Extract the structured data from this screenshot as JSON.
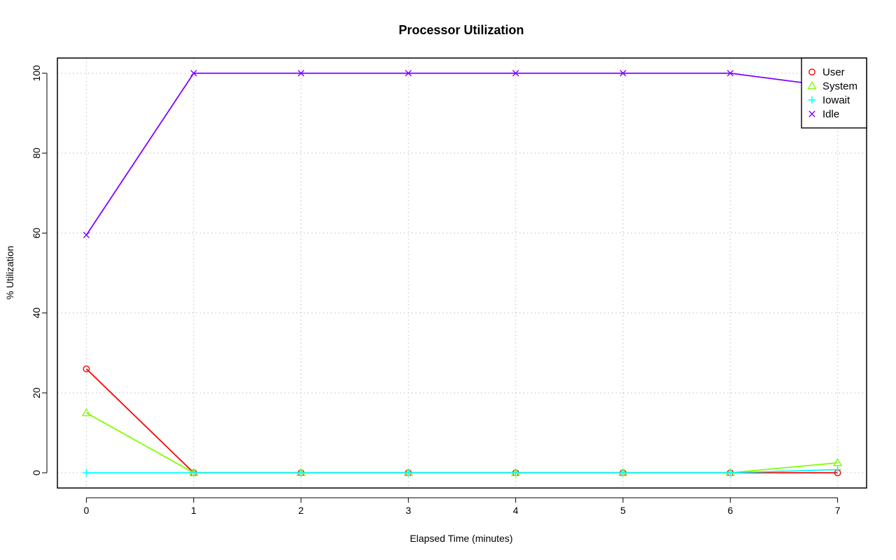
{
  "chart_data": {
    "type": "line",
    "title": "Processor Utilization",
    "xlabel": "Elapsed Time (minutes)",
    "ylabel": "% Utilization",
    "x": [
      0,
      1,
      2,
      3,
      4,
      5,
      6,
      7
    ],
    "xlim": [
      -0.27,
      7.27
    ],
    "ylim": [
      -3.8,
      103.8
    ],
    "xticks": [
      0,
      1,
      2,
      3,
      4,
      5,
      6,
      7
    ],
    "yticks": [
      0,
      20,
      40,
      60,
      80,
      100
    ],
    "grid": true,
    "legend_position": "top-right",
    "series": [
      {
        "name": "User",
        "marker": "circle",
        "color": "#ff0000",
        "values": [
          26,
          0,
          0,
          0,
          0,
          0,
          0,
          0
        ]
      },
      {
        "name": "System",
        "marker": "triangle",
        "color": "#80ff00",
        "values": [
          15,
          0,
          0,
          0,
          0,
          0,
          0,
          2.5
        ]
      },
      {
        "name": "Iowait",
        "marker": "plus",
        "color": "#00ffff",
        "values": [
          0,
          0,
          0,
          0,
          0,
          0,
          0,
          0.8
        ]
      },
      {
        "name": "Idle",
        "marker": "x",
        "color": "#8000ff",
        "values": [
          59.5,
          100,
          100,
          100,
          100,
          100,
          100,
          96.5
        ]
      }
    ]
  }
}
